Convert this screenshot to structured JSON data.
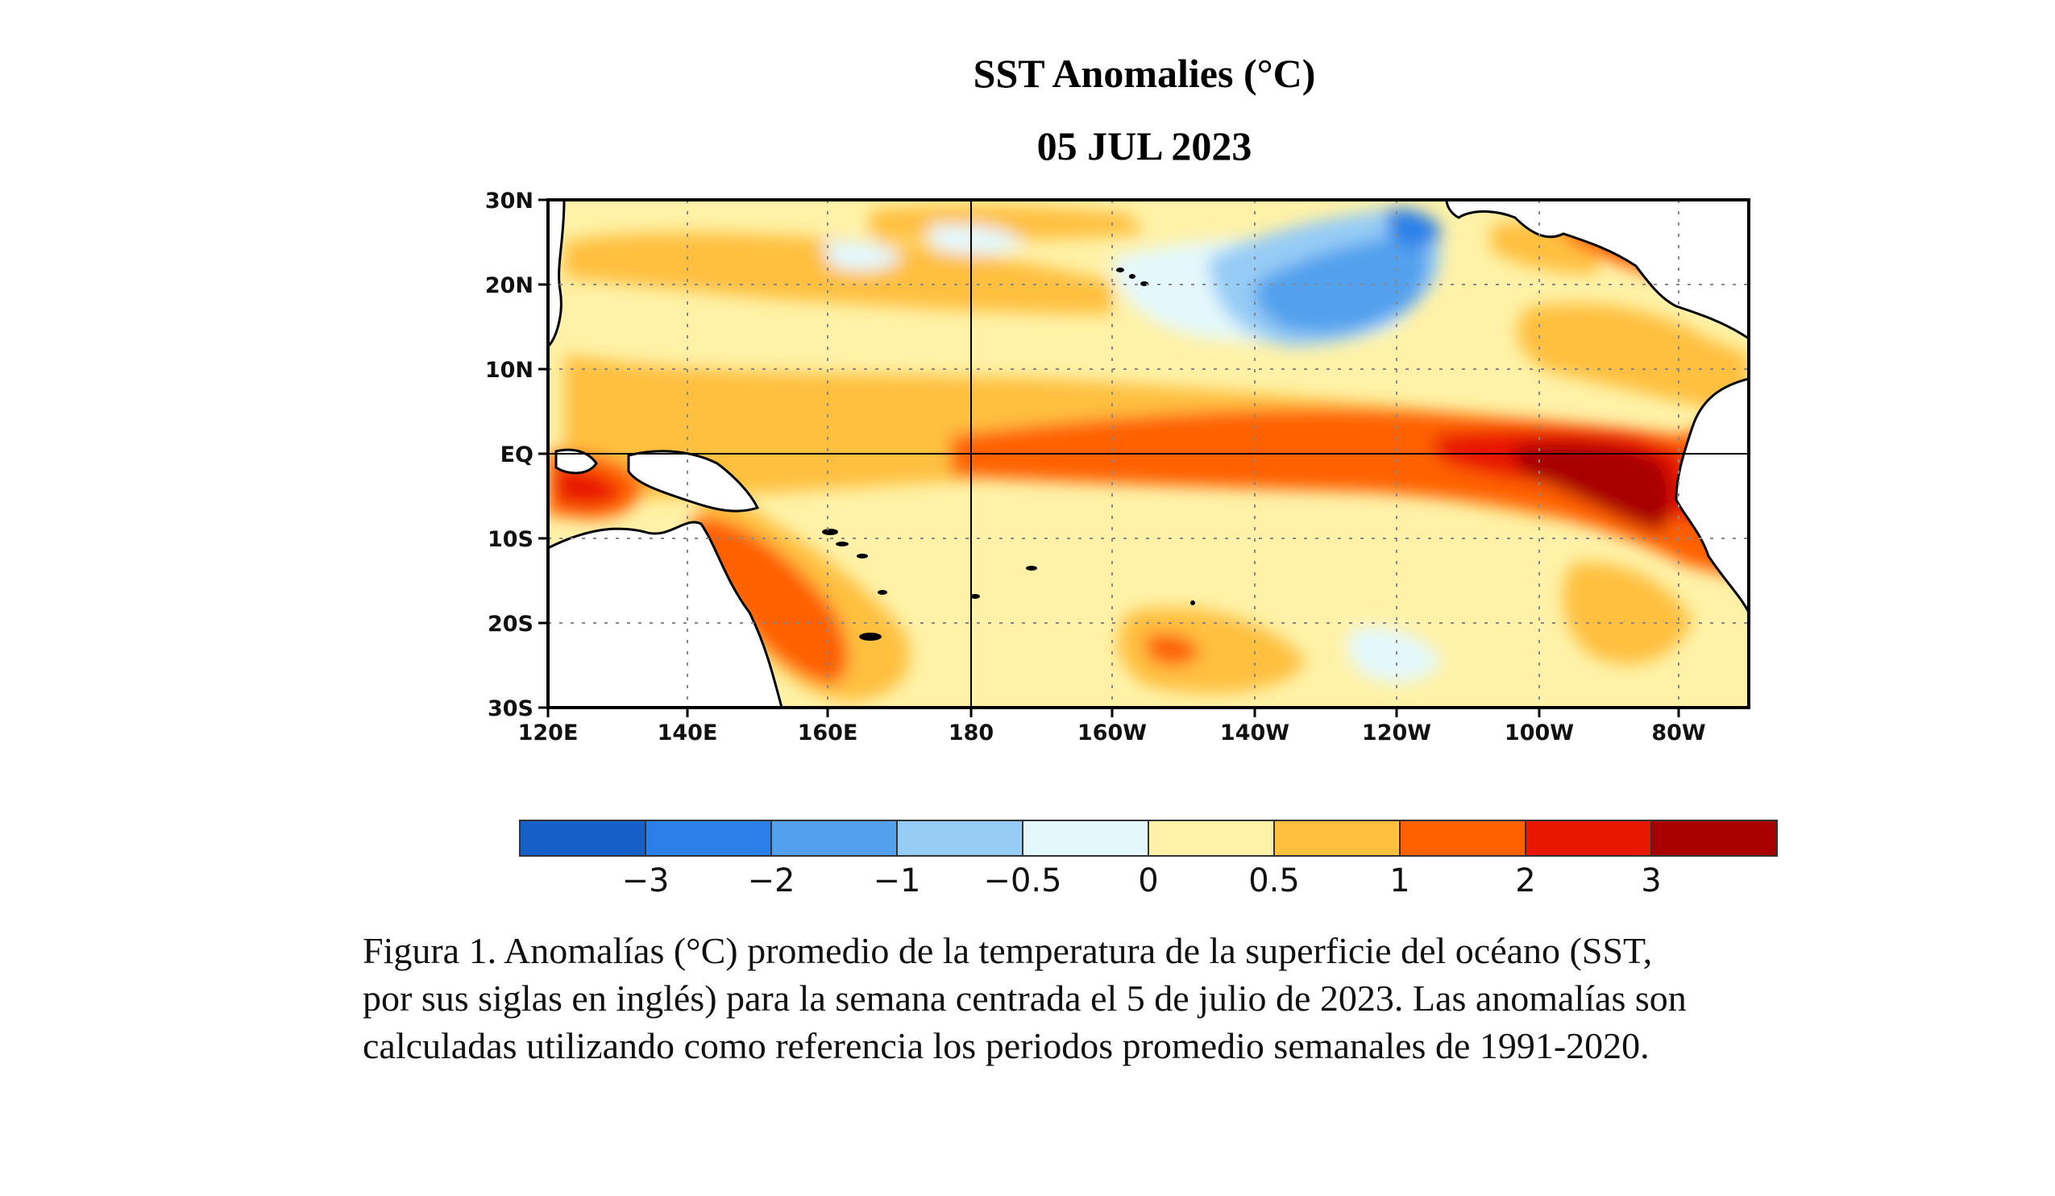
{
  "figure": {
    "title": "SST Anomalies (°C)",
    "date": "05 JUL 2023",
    "lat_labels": [
      "30N",
      "20N",
      "10N",
      "EQ",
      "10S",
      "20S",
      "30S"
    ],
    "lon_labels": [
      "120E",
      "140E",
      "160E",
      "180",
      "160W",
      "140W",
      "120W",
      "100W",
      "80W"
    ],
    "colorbar": {
      "colors": [
        "#1460c8",
        "#2a80e8",
        "#52a0ee",
        "#96ccf6",
        "#e4f8fc",
        "#fff2a8",
        "#ffc040",
        "#ff6000",
        "#e81800",
        "#a80000"
      ],
      "tick_labels": [
        "−3",
        "−2",
        "−1",
        "−0.5",
        "0",
        "0.5",
        "1",
        "2",
        "3"
      ]
    },
    "caption_lines": [
      "Figura 1. Anomalías (°C) promedio de la temperatura de la superficie del océano (SST,",
      "por sus siglas en inglés) para la semana centrada el 5 de julio de 2023. Las anomalías son",
      "calculadas utilizando como referencia los periodos promedio semanales de 1991-2020."
    ]
  }
}
